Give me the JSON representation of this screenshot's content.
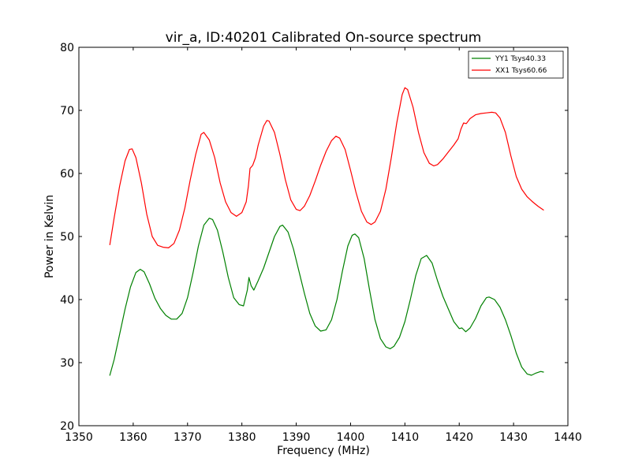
{
  "chart_data": {
    "type": "line",
    "title": "vir_a, ID:40201 Calibrated On-source spectrum",
    "xlabel": "Frequency (MHz)",
    "ylabel": "Power in Kelvin",
    "xlim": [
      1350,
      1440
    ],
    "ylim": [
      20,
      80
    ],
    "xticks": [
      "1350",
      "1360",
      "1370",
      "1380",
      "1390",
      "1400",
      "1410",
      "1420",
      "1430",
      "1440"
    ],
    "yticks": [
      "20",
      "30",
      "40",
      "50",
      "60",
      "70",
      "80"
    ],
    "grid": false,
    "legend_position": "top-right",
    "series": [
      {
        "name": "YY1 Tsys40.33",
        "color": "#008000",
        "points": [
          [
            1355.7,
            28.0
          ],
          [
            1356.5,
            30.5
          ],
          [
            1357.5,
            34.5
          ],
          [
            1358.5,
            38.5
          ],
          [
            1359.5,
            42.0
          ],
          [
            1360.5,
            44.3
          ],
          [
            1361.3,
            44.8
          ],
          [
            1362.0,
            44.4
          ],
          [
            1363.0,
            42.5
          ],
          [
            1364.0,
            40.2
          ],
          [
            1365.0,
            38.6
          ],
          [
            1366.0,
            37.5
          ],
          [
            1367.0,
            36.9
          ],
          [
            1368.0,
            36.9
          ],
          [
            1369.0,
            37.8
          ],
          [
            1370.0,
            40.3
          ],
          [
            1371.0,
            44.2
          ],
          [
            1372.0,
            48.5
          ],
          [
            1373.0,
            51.8
          ],
          [
            1374.0,
            52.9
          ],
          [
            1374.6,
            52.7
          ],
          [
            1375.5,
            51.0
          ],
          [
            1376.5,
            47.5
          ],
          [
            1377.5,
            43.5
          ],
          [
            1378.5,
            40.3
          ],
          [
            1379.5,
            39.2
          ],
          [
            1380.3,
            39.0
          ],
          [
            1381.0,
            41.5
          ],
          [
            1381.3,
            43.5
          ],
          [
            1381.7,
            42.2
          ],
          [
            1382.2,
            41.5
          ],
          [
            1383.0,
            43.0
          ],
          [
            1384.0,
            45.0
          ],
          [
            1385.0,
            47.5
          ],
          [
            1386.0,
            50.0
          ],
          [
            1387.0,
            51.6
          ],
          [
            1387.5,
            51.8
          ],
          [
            1388.5,
            50.7
          ],
          [
            1389.5,
            48.0
          ],
          [
            1390.5,
            44.5
          ],
          [
            1391.5,
            41.0
          ],
          [
            1392.5,
            37.8
          ],
          [
            1393.5,
            35.8
          ],
          [
            1394.5,
            35.0
          ],
          [
            1395.5,
            35.2
          ],
          [
            1396.5,
            36.8
          ],
          [
            1397.5,
            40.0
          ],
          [
            1398.5,
            44.5
          ],
          [
            1399.5,
            48.5
          ],
          [
            1400.3,
            50.2
          ],
          [
            1400.8,
            50.4
          ],
          [
            1401.5,
            49.8
          ],
          [
            1402.5,
            46.5
          ],
          [
            1403.5,
            41.5
          ],
          [
            1404.5,
            36.8
          ],
          [
            1405.5,
            33.8
          ],
          [
            1406.5,
            32.5
          ],
          [
            1407.3,
            32.2
          ],
          [
            1408.0,
            32.6
          ],
          [
            1409.0,
            34.0
          ],
          [
            1410.0,
            36.5
          ],
          [
            1411.0,
            40.0
          ],
          [
            1412.0,
            43.8
          ],
          [
            1413.0,
            46.5
          ],
          [
            1414.0,
            47.0
          ],
          [
            1415.0,
            45.8
          ],
          [
            1416.0,
            43.0
          ],
          [
            1417.0,
            40.5
          ],
          [
            1418.0,
            38.5
          ],
          [
            1419.0,
            36.5
          ],
          [
            1420.0,
            35.4
          ],
          [
            1420.5,
            35.5
          ],
          [
            1421.2,
            34.9
          ],
          [
            1422.0,
            35.5
          ],
          [
            1423.0,
            37.0
          ],
          [
            1424.0,
            39.0
          ],
          [
            1425.0,
            40.3
          ],
          [
            1425.5,
            40.4
          ],
          [
            1426.5,
            40.0
          ],
          [
            1427.5,
            38.8
          ],
          [
            1428.5,
            36.8
          ],
          [
            1429.5,
            34.3
          ],
          [
            1430.5,
            31.5
          ],
          [
            1431.5,
            29.3
          ],
          [
            1432.5,
            28.2
          ],
          [
            1433.3,
            28.0
          ],
          [
            1434.0,
            28.3
          ],
          [
            1435.0,
            28.6
          ],
          [
            1435.5,
            28.5
          ]
        ]
      },
      {
        "name": "XX1 Tsys60.66",
        "color": "#ff0000",
        "points": [
          [
            1355.7,
            48.7
          ],
          [
            1356.5,
            53.0
          ],
          [
            1357.5,
            58.0
          ],
          [
            1358.5,
            62.0
          ],
          [
            1359.3,
            63.8
          ],
          [
            1359.8,
            63.9
          ],
          [
            1360.5,
            62.5
          ],
          [
            1361.5,
            58.5
          ],
          [
            1362.5,
            53.5
          ],
          [
            1363.5,
            50.0
          ],
          [
            1364.5,
            48.6
          ],
          [
            1365.5,
            48.3
          ],
          [
            1366.5,
            48.2
          ],
          [
            1367.5,
            48.9
          ],
          [
            1368.5,
            51.0
          ],
          [
            1369.5,
            54.5
          ],
          [
            1370.5,
            59.0
          ],
          [
            1371.5,
            63.0
          ],
          [
            1372.5,
            66.2
          ],
          [
            1373.0,
            66.5
          ],
          [
            1374.0,
            65.3
          ],
          [
            1375.0,
            62.5
          ],
          [
            1376.0,
            58.5
          ],
          [
            1377.0,
            55.5
          ],
          [
            1378.0,
            53.8
          ],
          [
            1379.0,
            53.2
          ],
          [
            1380.0,
            53.8
          ],
          [
            1380.8,
            55.5
          ],
          [
            1381.2,
            58.0
          ],
          [
            1381.5,
            60.8
          ],
          [
            1382.0,
            61.3
          ],
          [
            1382.5,
            62.5
          ],
          [
            1383.0,
            64.5
          ],
          [
            1384.0,
            67.5
          ],
          [
            1384.6,
            68.4
          ],
          [
            1385.0,
            68.3
          ],
          [
            1386.0,
            66.5
          ],
          [
            1387.0,
            63.0
          ],
          [
            1388.0,
            59.0
          ],
          [
            1389.0,
            55.8
          ],
          [
            1390.0,
            54.3
          ],
          [
            1390.7,
            54.1
          ],
          [
            1391.5,
            54.8
          ],
          [
            1392.5,
            56.5
          ],
          [
            1393.5,
            58.8
          ],
          [
            1394.5,
            61.3
          ],
          [
            1395.5,
            63.5
          ],
          [
            1396.5,
            65.2
          ],
          [
            1397.3,
            65.9
          ],
          [
            1398.0,
            65.6
          ],
          [
            1399.0,
            63.8
          ],
          [
            1400.0,
            60.5
          ],
          [
            1401.0,
            57.0
          ],
          [
            1402.0,
            54.0
          ],
          [
            1403.0,
            52.3
          ],
          [
            1403.8,
            51.9
          ],
          [
            1404.5,
            52.3
          ],
          [
            1405.5,
            54.0
          ],
          [
            1406.5,
            57.5
          ],
          [
            1407.5,
            62.5
          ],
          [
            1408.5,
            68.0
          ],
          [
            1409.5,
            72.5
          ],
          [
            1410.0,
            73.6
          ],
          [
            1410.5,
            73.3
          ],
          [
            1411.5,
            70.5
          ],
          [
            1412.5,
            66.5
          ],
          [
            1413.5,
            63.3
          ],
          [
            1414.5,
            61.6
          ],
          [
            1415.3,
            61.2
          ],
          [
            1416.0,
            61.4
          ],
          [
            1417.0,
            62.3
          ],
          [
            1418.0,
            63.4
          ],
          [
            1419.0,
            64.5
          ],
          [
            1419.8,
            65.5
          ],
          [
            1420.3,
            67.0
          ],
          [
            1420.8,
            68.0
          ],
          [
            1421.3,
            67.9
          ],
          [
            1422.0,
            68.7
          ],
          [
            1423.0,
            69.3
          ],
          [
            1424.0,
            69.5
          ],
          [
            1425.0,
            69.6
          ],
          [
            1426.0,
            69.7
          ],
          [
            1426.7,
            69.6
          ],
          [
            1427.5,
            68.8
          ],
          [
            1428.5,
            66.5
          ],
          [
            1429.5,
            62.8
          ],
          [
            1430.5,
            59.5
          ],
          [
            1431.5,
            57.5
          ],
          [
            1432.5,
            56.3
          ],
          [
            1433.5,
            55.5
          ],
          [
            1434.5,
            54.8
          ],
          [
            1435.5,
            54.2
          ]
        ]
      }
    ]
  }
}
